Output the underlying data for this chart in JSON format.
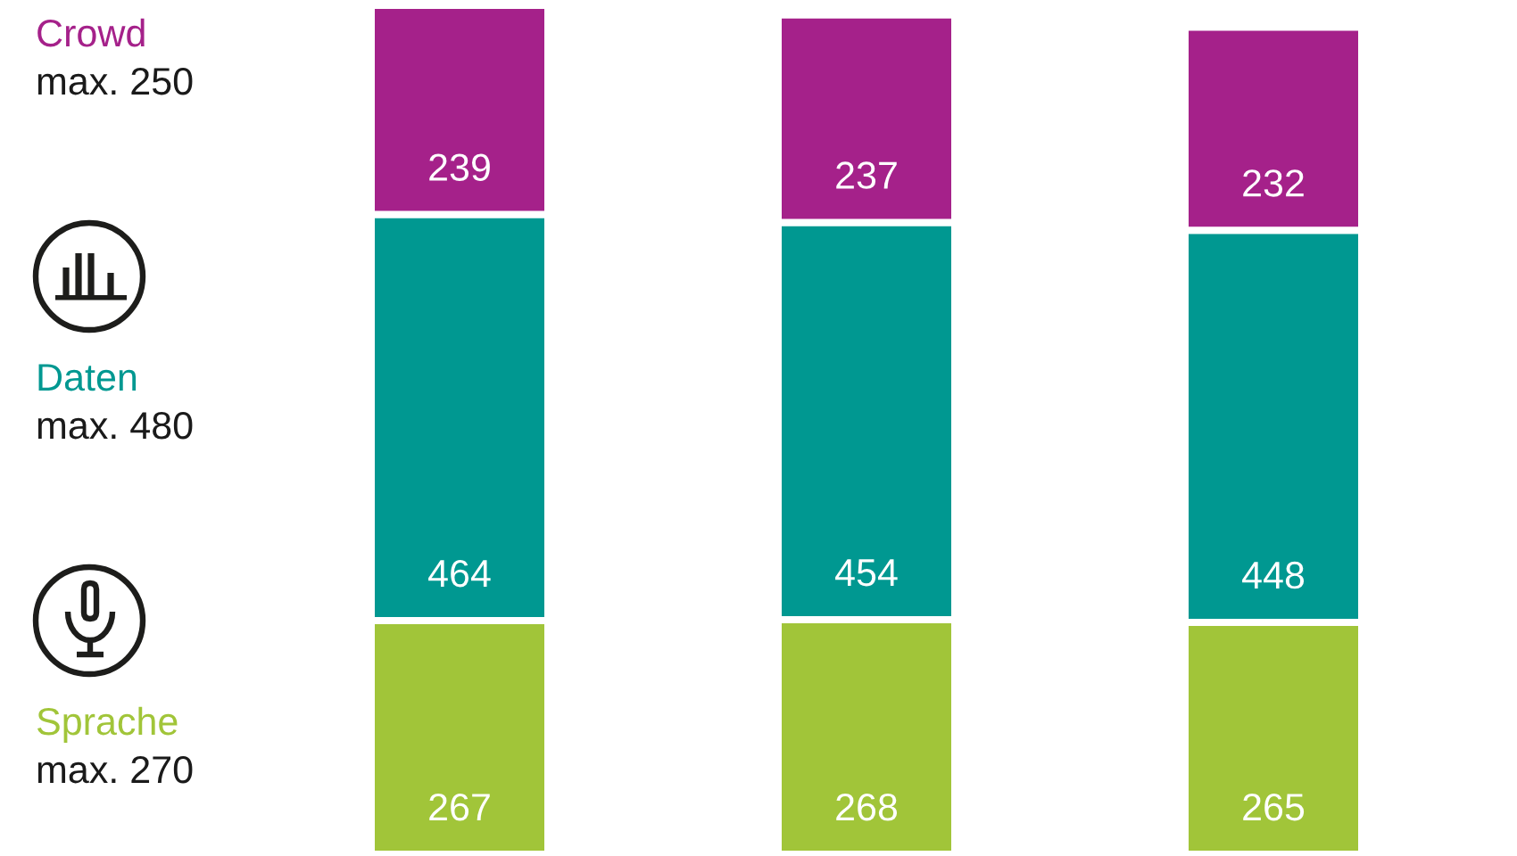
{
  "chart_data": {
    "type": "bar",
    "stacked": true,
    "categories": [
      null,
      null,
      null
    ],
    "series": [
      {
        "name": "Sprache",
        "color": "#a1c539",
        "values": [
          267,
          268,
          265
        ]
      },
      {
        "name": "Daten",
        "color": "#009891",
        "values": [
          464,
          454,
          448
        ]
      },
      {
        "name": "Crowd",
        "color": "#a5218a",
        "values": [
          239,
          237,
          232
        ]
      }
    ],
    "data_labels": true,
    "legend": false,
    "annotations": [
      "max. 270",
      "max. 480",
      "max. 250"
    ]
  }
}
